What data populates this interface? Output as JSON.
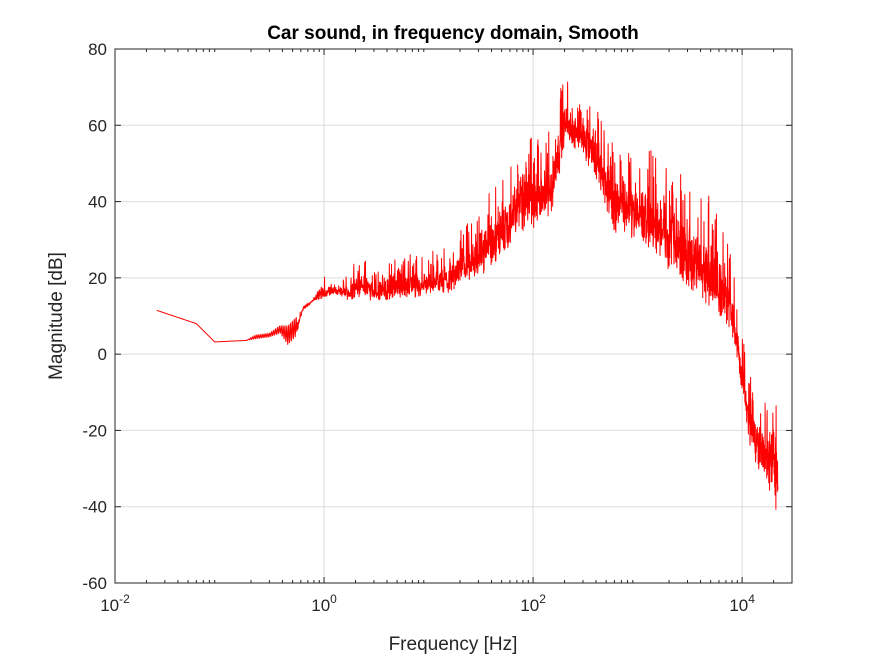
{
  "chart_data": {
    "type": "line",
    "title": "Car sound, in frequency domain, Smooth",
    "xlabel": "Frequency [Hz]",
    "ylabel": "Magnitude [dB]",
    "xscale": "log",
    "xlim": [
      0.01,
      30000
    ],
    "ylim": [
      -60,
      80
    ],
    "grid": true,
    "x_ticks": [
      {
        "value": 0.01,
        "base": "10",
        "exp": "-2"
      },
      {
        "value": 1,
        "base": "10",
        "exp": "0"
      },
      {
        "value": 100,
        "base": "10",
        "exp": "2"
      },
      {
        "value": 10000,
        "base": "10",
        "exp": "4"
      }
    ],
    "y_ticks": [
      -60,
      -40,
      -20,
      0,
      20,
      40,
      60,
      80
    ],
    "series": [
      {
        "color": "#ff0000",
        "note_envelope": "Noisy spectrum; upper and lower envelope points (frequency Hz, dB)",
        "upper": [
          [
            0.025,
            11.5
          ],
          [
            0.06,
            8
          ],
          [
            0.09,
            3.2
          ],
          [
            0.18,
            3.6
          ],
          [
            0.22,
            5
          ],
          [
            0.3,
            5.5
          ],
          [
            0.38,
            7.5
          ],
          [
            0.45,
            7.5
          ],
          [
            0.55,
            10
          ],
          [
            0.62,
            13
          ],
          [
            0.8,
            15
          ],
          [
            0.95,
            20
          ],
          [
            1.05,
            21.5
          ],
          [
            1.3,
            18
          ],
          [
            1.8,
            22
          ],
          [
            2,
            28
          ],
          [
            3,
            22
          ],
          [
            5,
            25
          ],
          [
            8,
            27
          ],
          [
            15,
            29
          ],
          [
            25,
            35
          ],
          [
            40,
            43
          ],
          [
            60,
            50
          ],
          [
            70,
            63
          ],
          [
            100,
            56
          ],
          [
            150,
            62
          ],
          [
            200,
            73
          ],
          [
            300,
            70
          ],
          [
            400,
            66
          ],
          [
            600,
            54
          ],
          [
            1000,
            55
          ],
          [
            1500,
            53
          ],
          [
            2000,
            50
          ],
          [
            3000,
            46
          ],
          [
            5000,
            42
          ],
          [
            6000,
            40
          ],
          [
            7000,
            36
          ],
          [
            8000,
            26
          ],
          [
            10000,
            5
          ],
          [
            12000,
            -5
          ],
          [
            15000,
            -10
          ],
          [
            18000,
            -10
          ],
          [
            20000,
            2.5
          ],
          [
            22000,
            -15
          ]
        ],
        "lower": [
          [
            0.025,
            11.5
          ],
          [
            0.06,
            8
          ],
          [
            0.09,
            3.2
          ],
          [
            0.18,
            3.6
          ],
          [
            0.22,
            4
          ],
          [
            0.3,
            4.5
          ],
          [
            0.38,
            5.5
          ],
          [
            0.45,
            2.5
          ],
          [
            0.55,
            5
          ],
          [
            0.62,
            11
          ],
          [
            0.8,
            14
          ],
          [
            0.95,
            14.5
          ],
          [
            1.05,
            15
          ],
          [
            1.3,
            15.5
          ],
          [
            1.8,
            14
          ],
          [
            2,
            15
          ],
          [
            3,
            14
          ],
          [
            5,
            14.5
          ],
          [
            8,
            15
          ],
          [
            15,
            16
          ],
          [
            25,
            19
          ],
          [
            40,
            22
          ],
          [
            60,
            28
          ],
          [
            70,
            32
          ],
          [
            100,
            33
          ],
          [
            150,
            36
          ],
          [
            200,
            55
          ],
          [
            300,
            52
          ],
          [
            400,
            46
          ],
          [
            600,
            32
          ],
          [
            1000,
            30
          ],
          [
            1500,
            26
          ],
          [
            2000,
            22
          ],
          [
            3000,
            18
          ],
          [
            5000,
            12
          ],
          [
            6000,
            10
          ],
          [
            7000,
            8
          ],
          [
            8000,
            5
          ],
          [
            10000,
            -10
          ],
          [
            12000,
            -25
          ],
          [
            15000,
            -32
          ],
          [
            18000,
            -35
          ],
          [
            20000,
            -40
          ],
          [
            22000,
            -43
          ]
        ]
      }
    ]
  }
}
